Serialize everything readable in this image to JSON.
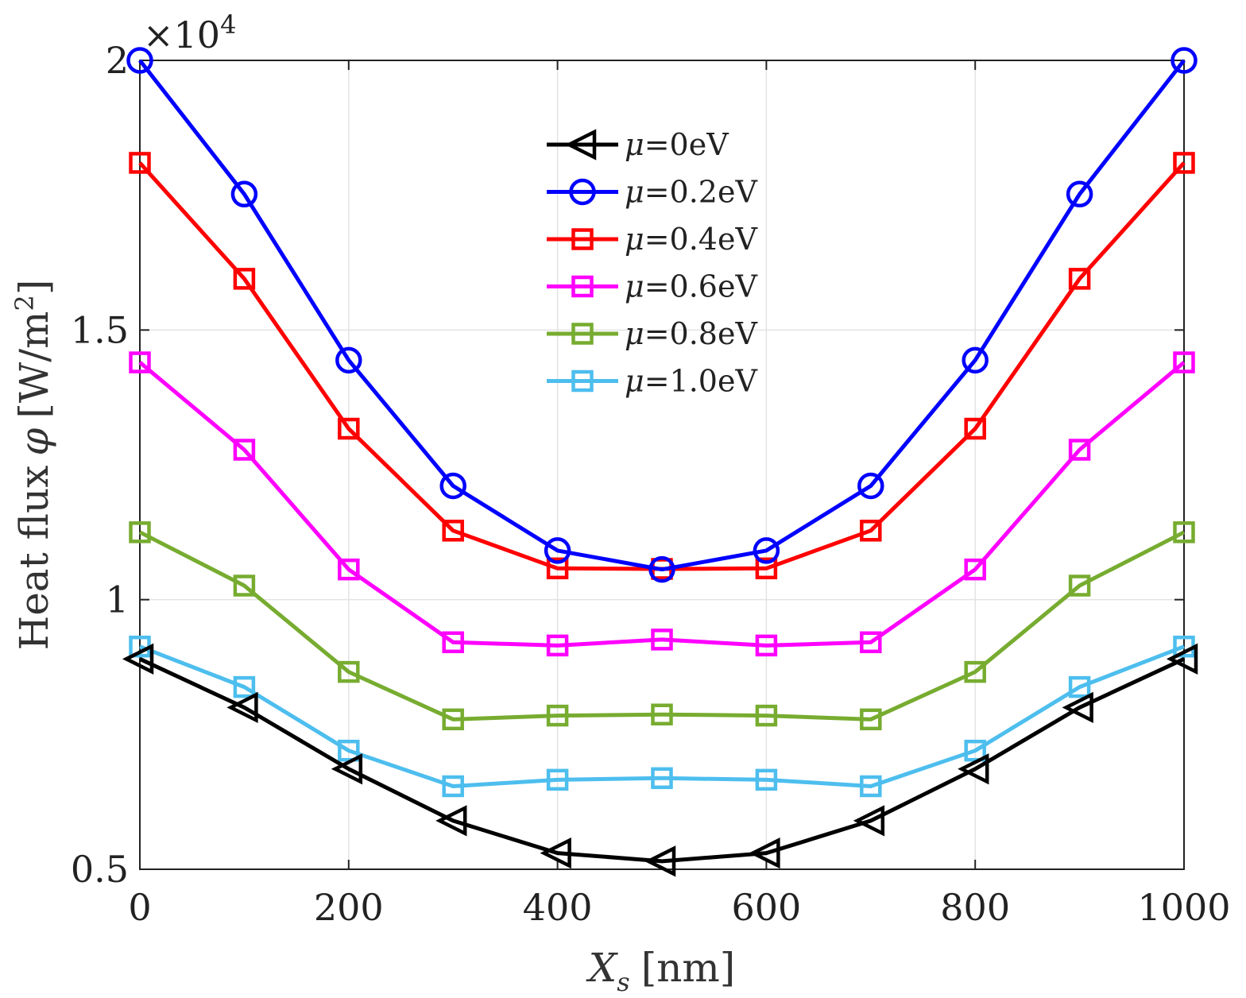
{
  "chart_data": {
    "type": "line",
    "title": "",
    "xlabel_main": "X",
    "xlabel_sub": "s",
    "xlabel_unit": "[nm]",
    "ylabel_main": "Heat flux",
    "ylabel_symbol": "φ",
    "ylabel_unit": "[W/m",
    "ylabel_unit_sup": "2",
    "ylabel_unit_close": "]",
    "exponent_times": "×10",
    "exponent_power": "4",
    "xlim": [
      0,
      1000
    ],
    "ylim": [
      0.5,
      2.0
    ],
    "xticks": [
      0,
      200,
      400,
      600,
      800,
      1000
    ],
    "xtick_labels": [
      "0",
      "200",
      "400",
      "600",
      "800",
      "1000"
    ],
    "yticks": [
      0.5,
      1.0,
      1.5,
      2.0
    ],
    "ytick_labels": [
      "0.5",
      "1",
      "1.5",
      "2"
    ],
    "grid": true,
    "legend_position": "top-center",
    "x": [
      0,
      100,
      200,
      300,
      400,
      500,
      600,
      700,
      800,
      900,
      1000
    ],
    "series": [
      {
        "name": "μ=0eV",
        "label_mu": "μ",
        "label_rest": "=0eV",
        "color": "#000000",
        "marker": "triangle-left",
        "values": [
          0.89,
          0.8,
          0.686,
          0.59,
          0.53,
          0.515,
          0.53,
          0.59,
          0.686,
          0.8,
          0.89
        ]
      },
      {
        "name": "μ=0.2eV",
        "label_mu": "μ",
        "label_rest": "=0.2eV",
        "color": "#0000ff",
        "marker": "circle",
        "values": [
          2.0,
          1.752,
          1.444,
          1.211,
          1.091,
          1.056,
          1.091,
          1.211,
          1.444,
          1.752,
          2.0
        ]
      },
      {
        "name": "μ=0.4eV",
        "label_mu": "μ",
        "label_rest": "=0.4eV",
        "color": "#ff0000",
        "marker": "square",
        "values": [
          1.81,
          1.595,
          1.317,
          1.128,
          1.058,
          1.057,
          1.058,
          1.128,
          1.317,
          1.595,
          1.81
        ]
      },
      {
        "name": "μ=0.6eV",
        "label_mu": "μ",
        "label_rest": "=0.6eV",
        "color": "#ff00ff",
        "marker": "square",
        "values": [
          1.44,
          1.278,
          1.056,
          0.921,
          0.915,
          0.926,
          0.915,
          0.921,
          1.056,
          1.278,
          1.44
        ]
      },
      {
        "name": "μ=0.8eV",
        "label_mu": "μ",
        "label_rest": "=0.8eV",
        "color": "#77ac30",
        "marker": "square",
        "values": [
          1.125,
          1.026,
          0.866,
          0.778,
          0.785,
          0.787,
          0.785,
          0.778,
          0.866,
          1.026,
          1.125
        ]
      },
      {
        "name": "μ=1.0eV",
        "label_mu": "μ",
        "label_rest": "=1.0eV",
        "color": "#4dbeee",
        "marker": "square",
        "values": [
          0.913,
          0.838,
          0.72,
          0.654,
          0.666,
          0.669,
          0.666,
          0.654,
          0.72,
          0.838,
          0.913
        ]
      }
    ]
  }
}
